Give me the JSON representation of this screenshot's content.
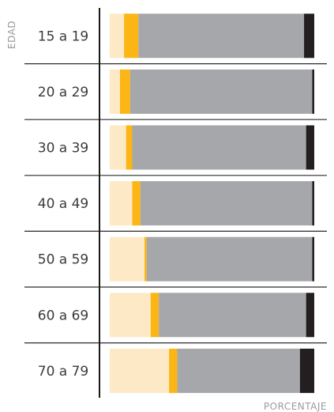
{
  "chart_data": {
    "type": "bar",
    "orientation": "horizontal",
    "stacked": true,
    "xlabel": "PORCENTAJE",
    "ylabel": "EDAD",
    "xlim": [
      0,
      100
    ],
    "categories": [
      "15 a 19",
      "20 a 29",
      "30 a 39",
      "40 a 49",
      "50 a 59",
      "60 a 69",
      "70 a 79"
    ],
    "series": [
      {
        "color": "#FDE9C6",
        "values": [
          7,
          5,
          8,
          11,
          17,
          20,
          29
        ]
      },
      {
        "color": "#FBB514",
        "values": [
          7,
          5,
          3,
          4,
          1,
          4,
          4
        ]
      },
      {
        "color": "#A6A7AA",
        "values": [
          81,
          89,
          85,
          84,
          81,
          72,
          60
        ]
      },
      {
        "color": "#231F20",
        "values": [
          5,
          1,
          4,
          1,
          1,
          4,
          7
        ]
      }
    ],
    "grid": false,
    "legend": "none"
  }
}
